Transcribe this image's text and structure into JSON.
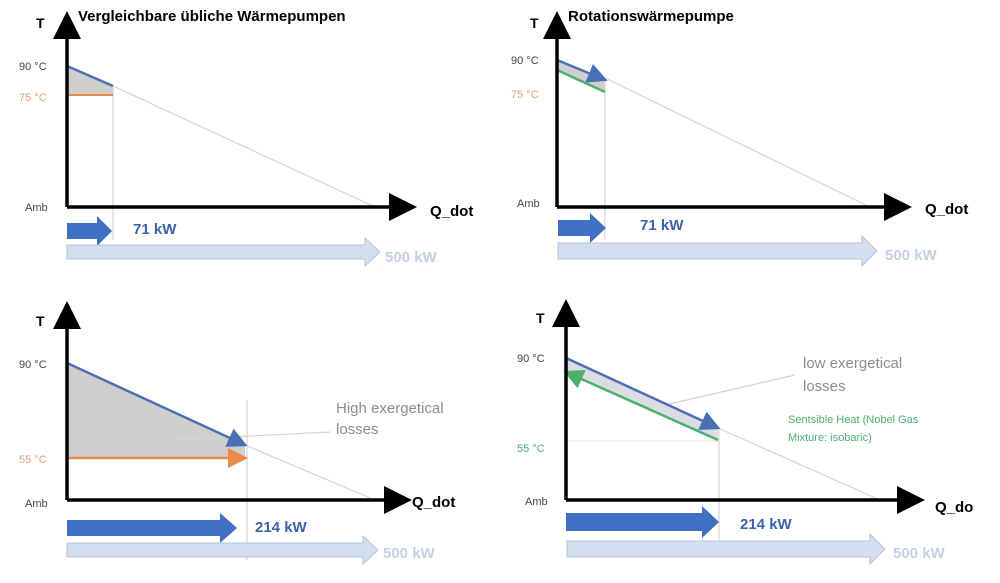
{
  "colors": {
    "hot_line": "#4a6fb5",
    "orange": "#e88a4a",
    "green": "#4caf6e",
    "fill": "#cfcfcf",
    "arrow": "#3f70c4",
    "arrow_light": "#d3deef"
  },
  "panels": [
    {
      "title": "Vergleichbare übliche Wärmepumpen",
      "y_axis": "T",
      "x_axis": "Q_dot",
      "t_high": "90 °C",
      "t_low": "75 °C",
      "amb": "Amb",
      "power": "71 kW",
      "total": "500 kW"
    },
    {
      "title": "Rotationswärmepumpe",
      "y_axis": "T",
      "x_axis": "Q_dot",
      "t_high": "90 °C",
      "t_low": "75 °C",
      "amb": "Amb",
      "power": "71 kW",
      "total": "500 kW"
    },
    {
      "y_axis": "T",
      "x_axis": "Q_dot",
      "t_high": "90 °C",
      "t_low": "55 °C",
      "amb": "Amb",
      "power": "214 kW",
      "total": "500 kW",
      "note_line1": "High exergetical",
      "note_line2": "losses"
    },
    {
      "y_axis": "T",
      "x_axis": "Q_do",
      "t_high": "90 °C",
      "t_low": "55 °C",
      "amb": "Amb",
      "power": "214 kW",
      "total": "500 kW",
      "note_line1": "low exergetical",
      "note_line2": "losses",
      "green_line1": "Sentsible Heat (Nobel Gas",
      "green_line2": "Mixture: isobaric)"
    }
  ]
}
